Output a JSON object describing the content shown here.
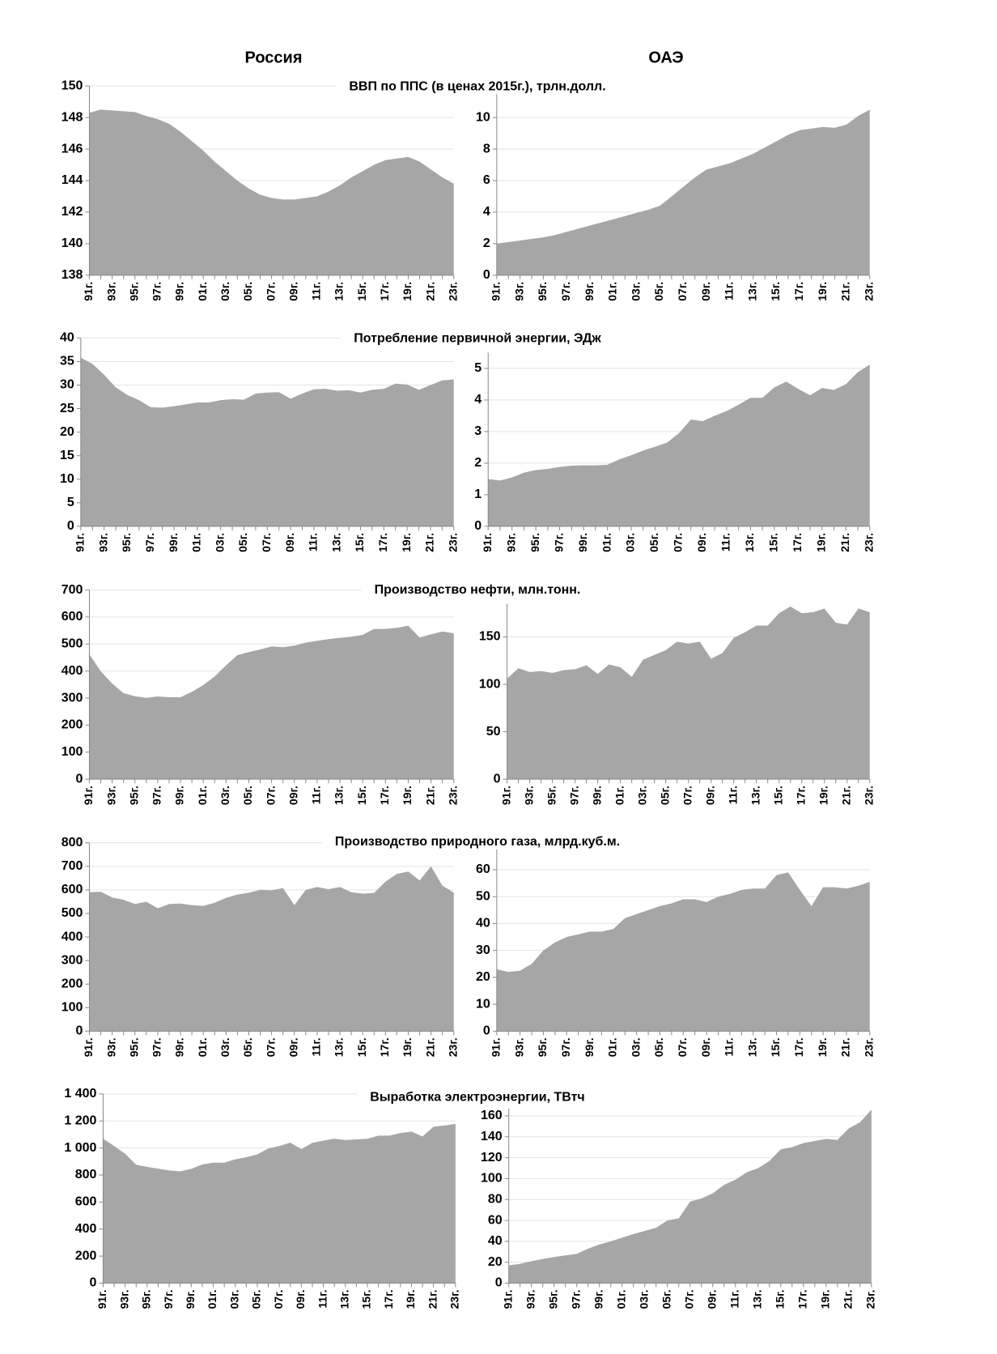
{
  "headers": [
    "Россия",
    "ОАЭ"
  ],
  "chart_data": [
    {
      "type": "area",
      "title": "ВВП по ППС (в ценах 2015г.),  трлн.долл.",
      "color": "#a6a6a6",
      "grid": true,
      "categories": [
        "91г.",
        null,
        "93г.",
        null,
        "95г.",
        null,
        "97г.",
        null,
        "99г.",
        null,
        "01г.",
        null,
        "03г.",
        null,
        "05г.",
        null,
        "07г.",
        null,
        "09г.",
        null,
        "11г.",
        null,
        "13г.",
        null,
        "15г.",
        null,
        "17г.",
        null,
        "19г.",
        null,
        "21г.",
        null,
        "23г."
      ],
      "values": [
        148.3,
        148.5,
        148.45,
        148.4,
        148.35,
        148.1,
        147.9,
        147.6,
        147.1,
        146.5,
        145.9,
        145.2,
        144.6,
        144.0,
        143.5,
        143.1,
        142.9,
        142.8,
        142.8,
        142.9,
        143.0,
        143.3,
        143.7,
        144.2,
        144.6,
        145.0,
        145.3,
        145.4,
        145.5,
        145.2,
        144.7,
        144.2,
        143.8
      ],
      "ylim": [
        138,
        150
      ],
      "yticks": [
        138,
        140,
        142,
        144,
        146,
        148,
        150
      ]
    },
    {
      "type": "area",
      "color": "#a6a6a6",
      "grid": true,
      "categories": [
        "91г.",
        null,
        "93г.",
        null,
        "95г.",
        null,
        "97г.",
        null,
        "99г.",
        null,
        "01г.",
        null,
        "03г.",
        null,
        "05г.",
        null,
        "07г.",
        null,
        "09г.",
        null,
        "11г.",
        null,
        "13г.",
        null,
        "15г.",
        null,
        "17г.",
        null,
        "19г.",
        null,
        "21г.",
        null,
        "23г."
      ],
      "values": [
        2.0,
        2.1,
        2.2,
        2.3,
        2.4,
        2.55,
        2.75,
        2.95,
        3.15,
        3.35,
        3.55,
        3.75,
        3.95,
        4.15,
        4.4,
        5.0,
        5.6,
        6.2,
        6.7,
        6.9,
        7.1,
        7.4,
        7.7,
        8.1,
        8.5,
        8.9,
        9.2,
        9.3,
        9.4,
        9.35,
        9.55,
        10.1,
        10.5
      ],
      "ylim": [
        0,
        12
      ],
      "yticks": [
        0,
        2,
        4,
        6,
        8,
        10
      ]
    },
    {
      "type": "area",
      "title": "Потребление первичной энергии, ЭДж",
      "color": "#a6a6a6",
      "grid": true,
      "categories": [
        "91г.",
        null,
        "93г.",
        null,
        "95г.",
        null,
        "97г.",
        null,
        "99г.",
        null,
        "01г.",
        null,
        "03г.",
        null,
        "05г.",
        null,
        "07г.",
        null,
        "09г.",
        null,
        "11г.",
        null,
        "13г.",
        null,
        "15г.",
        null,
        "17г.",
        null,
        "19г.",
        null,
        "21г.",
        null,
        "23г."
      ],
      "values": [
        35.8,
        34.5,
        32.2,
        29.5,
        27.9,
        26.8,
        25.3,
        25.2,
        25.5,
        25.9,
        26.3,
        26.3,
        26.8,
        27.0,
        26.9,
        28.2,
        28.4,
        28.5,
        27.1,
        28.2,
        29.1,
        29.2,
        28.8,
        28.9,
        28.4,
        29.0,
        29.2,
        30.3,
        30.1,
        29.0,
        30.0,
        31.0,
        31.2
      ],
      "ylim": [
        0,
        40
      ],
      "yticks": [
        0,
        5,
        10,
        15,
        20,
        25,
        30,
        35,
        40
      ]
    },
    {
      "type": "area",
      "color": "#a6a6a6",
      "grid": true,
      "categories": [
        "91г.",
        null,
        "93г.",
        null,
        "95г.",
        null,
        "97г.",
        null,
        "99г.",
        null,
        "01г.",
        null,
        "03г.",
        null,
        "05г.",
        null,
        "07г.",
        null,
        "09г.",
        null,
        "11г.",
        null,
        "13г.",
        null,
        "15г.",
        null,
        "17г.",
        null,
        "19г.",
        null,
        "21г.",
        null,
        "23г."
      ],
      "values": [
        1.5,
        1.45,
        1.55,
        1.7,
        1.78,
        1.82,
        1.88,
        1.92,
        1.93,
        1.93,
        1.95,
        2.12,
        2.25,
        2.4,
        2.52,
        2.65,
        2.95,
        3.38,
        3.33,
        3.5,
        3.65,
        3.85,
        4.07,
        4.07,
        4.4,
        4.58,
        4.35,
        4.15,
        4.38,
        4.32,
        4.5,
        4.88,
        5.12
      ],
      "ylim": [
        0,
        5.5
      ],
      "yticks": [
        0,
        1,
        2,
        3,
        4,
        5
      ]
    },
    {
      "type": "area",
      "title": "Производство нефти, млн.тонн.",
      "color": "#a6a6a6",
      "grid": true,
      "categories": [
        "91г.",
        null,
        "93г.",
        null,
        "95г.",
        null,
        "97г.",
        null,
        "99г.",
        null,
        "01г.",
        null,
        "03г.",
        null,
        "05г.",
        null,
        "07г.",
        null,
        "09г.",
        null,
        "11г.",
        null,
        "13г.",
        null,
        "15г.",
        null,
        "17г.",
        null,
        "19г.",
        null,
        "21г.",
        null,
        "23г."
      ],
      "values": [
        462,
        399,
        354,
        318,
        307,
        301,
        306,
        303,
        303,
        323,
        348,
        380,
        421,
        459,
        470,
        480,
        491,
        488,
        494,
        505,
        512,
        518,
        523,
        527,
        534,
        556,
        556,
        560,
        568,
        524,
        536,
        546,
        540
      ],
      "ylim": [
        0,
        700
      ],
      "yticks": [
        0,
        100,
        200,
        300,
        400,
        500,
        600,
        700
      ]
    },
    {
      "type": "area",
      "color": "#a6a6a6",
      "grid": true,
      "categories": [
        "91г.",
        null,
        "93г.",
        null,
        "95г.",
        null,
        "97г.",
        null,
        "99г.",
        null,
        "01г.",
        null,
        "03г.",
        null,
        "05г.",
        null,
        "07г.",
        null,
        "09г.",
        null,
        "11г.",
        null,
        "13г.",
        null,
        "15г.",
        null,
        "17г.",
        null,
        "19г.",
        null,
        "21г.",
        null,
        "23г."
      ],
      "values": [
        106,
        117,
        113,
        114,
        112,
        115,
        116,
        120,
        111,
        121,
        118,
        108,
        126,
        131,
        136,
        145,
        143,
        145,
        127,
        133,
        149,
        155,
        162,
        162,
        175,
        182,
        175,
        176,
        180,
        165,
        163,
        180,
        176
      ],
      "ylim": [
        0,
        185
      ],
      "yticks": [
        0,
        50,
        100,
        150
      ]
    },
    {
      "type": "area",
      "title": "Производство природного  газа, млрд.куб.м.",
      "color": "#a6a6a6",
      "grid": true,
      "categories": [
        "91г.",
        null,
        "93г.",
        null,
        "95г.",
        null,
        "97г.",
        null,
        "99г.",
        null,
        "01г.",
        null,
        "03г.",
        null,
        "05г.",
        null,
        "07г.",
        null,
        "09г.",
        null,
        "11г.",
        null,
        "13г.",
        null,
        "15г.",
        null,
        "17г.",
        null,
        "19г.",
        null,
        "21г.",
        null,
        "23г."
      ],
      "values": [
        590,
        592,
        568,
        558,
        540,
        550,
        522,
        540,
        542,
        535,
        532,
        545,
        566,
        580,
        588,
        600,
        598,
        608,
        535,
        600,
        612,
        603,
        612,
        590,
        584,
        587,
        635,
        668,
        678,
        640,
        700,
        618,
        588
      ],
      "ylim": [
        0,
        800
      ],
      "yticks": [
        0,
        100,
        200,
        300,
        400,
        500,
        600,
        700,
        800
      ]
    },
    {
      "type": "area",
      "color": "#a6a6a6",
      "grid": true,
      "categories": [
        "91г.",
        null,
        "93г.",
        null,
        "95г.",
        null,
        "97г.",
        null,
        "99г.",
        null,
        "01г.",
        null,
        "03г.",
        null,
        "05г.",
        null,
        "07г.",
        null,
        "09г.",
        null,
        "11г.",
        null,
        "13г.",
        null,
        "15г.",
        null,
        "17г.",
        null,
        "19г.",
        null,
        "21г.",
        null,
        "23г."
      ],
      "values": [
        23,
        22,
        22.5,
        25,
        30,
        33,
        35,
        36,
        37,
        37,
        38,
        42,
        43.5,
        45,
        46.5,
        47.5,
        49,
        49,
        48,
        50,
        51,
        52.5,
        53,
        53,
        58,
        59,
        52.5,
        46.5,
        53.5,
        53.5,
        53,
        54,
        55.5
      ],
      "ylim": [
        0,
        70
      ],
      "yticks": [
        0,
        10,
        20,
        30,
        40,
        50,
        60
      ]
    },
    {
      "type": "area",
      "title": "Выработка электроэнергии, ТВтч",
      "color": "#a6a6a6",
      "grid": true,
      "categories": [
        "91г.",
        null,
        "93г.",
        null,
        "95г.",
        null,
        "97г.",
        null,
        "99г.",
        null,
        "01г.",
        null,
        "03г.",
        null,
        "05г.",
        null,
        "07г.",
        null,
        "09г.",
        null,
        "11г.",
        null,
        "13г.",
        null,
        "15г.",
        null,
        "17г.",
        null,
        "19г.",
        null,
        "21г.",
        null,
        "23г."
      ],
      "values": [
        1068,
        1015,
        957,
        876,
        860,
        847,
        834,
        827,
        846,
        878,
        891,
        891,
        916,
        932,
        953,
        996,
        1015,
        1040,
        992,
        1038,
        1055,
        1069,
        1059,
        1064,
        1068,
        1091,
        1091,
        1111,
        1121,
        1085,
        1157,
        1167,
        1178
      ],
      "ylim": [
        0,
        1400
      ],
      "yticks": [
        0,
        200,
        400,
        600,
        800,
        {
          "value": 1000,
          "label": "1 000"
        },
        {
          "value": 1200,
          "label": "1 200"
        },
        {
          "value": 1400,
          "label": "1 400"
        }
      ]
    },
    {
      "type": "area",
      "color": "#a6a6a6",
      "grid": true,
      "categories": [
        "91г.",
        null,
        "93г.",
        null,
        "95г.",
        null,
        "97г.",
        null,
        "99г.",
        null,
        "01г.",
        null,
        "03г.",
        null,
        "05г.",
        null,
        "07г.",
        null,
        "09г.",
        null,
        "11г.",
        null,
        "13г.",
        null,
        "15г.",
        null,
        "17г.",
        null,
        "19г.",
        null,
        "21г.",
        null,
        "23г."
      ],
      "values": [
        17,
        18.5,
        21,
        23,
        25,
        26.5,
        28,
        33,
        37,
        40,
        43.5,
        47,
        50,
        53,
        60,
        62,
        78,
        81,
        86,
        94,
        99,
        106,
        110,
        117,
        128,
        130,
        134,
        136,
        138,
        137,
        148,
        154,
        166
      ],
      "ylim": [
        0,
        167
      ],
      "yticks": [
        0,
        20,
        40,
        60,
        80,
        100,
        120,
        140,
        160
      ]
    }
  ]
}
